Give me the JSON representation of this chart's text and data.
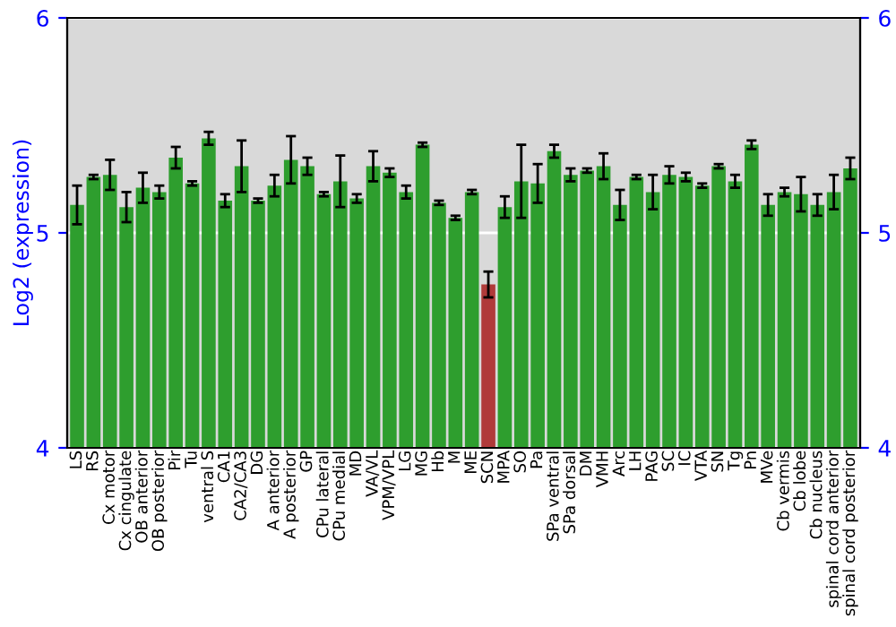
{
  "chart_data": {
    "type": "bar",
    "ylabel": "Log2 (expression)",
    "categories": [
      "LS",
      "RS",
      "Cx motor",
      "Cx cingulate",
      "OB anterior",
      "OB posterior",
      "Pir",
      "Tu",
      "ventral S",
      "CA1",
      "CA2/CA3",
      "DG",
      "A anterior",
      "A posterior",
      "GP",
      "CPu lateral",
      "CPu medial",
      "MD",
      "VA/VL",
      "VPM/VPL",
      "LG",
      "MG",
      "Hb",
      "M",
      "ME",
      "SCN",
      "MPA",
      "SO",
      "Pa",
      "SPa ventral",
      "SPa dorsal",
      "DM",
      "VMH",
      "Arc",
      "LH",
      "PAG",
      "SC",
      "IC",
      "VTA",
      "SN",
      "Tg",
      "Pn",
      "MVe",
      "Cb vermis",
      "Cb lobe",
      "Cb nucleus",
      "spinal cord anterior",
      "spinal cord posterior"
    ],
    "values": [
      5.13,
      5.26,
      5.27,
      5.12,
      5.21,
      5.19,
      5.35,
      5.23,
      5.44,
      5.15,
      5.31,
      5.15,
      5.22,
      5.34,
      5.31,
      5.18,
      5.24,
      5.16,
      5.31,
      5.28,
      5.19,
      5.41,
      5.14,
      5.07,
      5.19,
      4.76,
      5.12,
      5.24,
      5.23,
      5.38,
      5.27,
      5.29,
      5.31,
      5.13,
      5.26,
      5.19,
      5.27,
      5.26,
      5.22,
      5.31,
      5.24,
      5.41,
      5.13,
      5.19,
      5.18,
      5.13,
      5.19,
      5.3
    ],
    "errors": [
      0.09,
      0.01,
      0.07,
      0.07,
      0.07,
      0.03,
      0.05,
      0.01,
      0.03,
      0.03,
      0.12,
      0.01,
      0.05,
      0.11,
      0.04,
      0.01,
      0.12,
      0.02,
      0.07,
      0.02,
      0.03,
      0.01,
      0.01,
      0.01,
      0.01,
      0.06,
      0.05,
      0.17,
      0.09,
      0.03,
      0.03,
      0.01,
      0.06,
      0.07,
      0.01,
      0.08,
      0.04,
      0.02,
      0.01,
      0.01,
      0.03,
      0.02,
      0.05,
      0.02,
      0.08,
      0.05,
      0.08,
      0.05
    ],
    "colors": [
      "#2e9e2e",
      "#2e9e2e",
      "#2e9e2e",
      "#2e9e2e",
      "#2e9e2e",
      "#2e9e2e",
      "#2e9e2e",
      "#2e9e2e",
      "#2e9e2e",
      "#2e9e2e",
      "#2e9e2e",
      "#2e9e2e",
      "#2e9e2e",
      "#2e9e2e",
      "#2e9e2e",
      "#2e9e2e",
      "#2e9e2e",
      "#2e9e2e",
      "#2e9e2e",
      "#2e9e2e",
      "#2e9e2e",
      "#2e9e2e",
      "#2e9e2e",
      "#2e9e2e",
      "#2e9e2e",
      "#b03a3a",
      "#2e9e2e",
      "#2e9e2e",
      "#2e9e2e",
      "#2e9e2e",
      "#2e9e2e",
      "#2e9e2e",
      "#2e9e2e",
      "#2e9e2e",
      "#2e9e2e",
      "#2e9e2e",
      "#2e9e2e",
      "#2e9e2e",
      "#2e9e2e",
      "#2e9e2e",
      "#2e9e2e",
      "#2e9e2e",
      "#2e9e2e",
      "#2e9e2e",
      "#2e9e2e",
      "#2e9e2e",
      "#2e9e2e",
      "#2e9e2e"
    ],
    "ylim": [
      4,
      6
    ],
    "yticks": [
      4,
      5,
      6
    ],
    "y2lim": [
      4,
      6
    ],
    "y2ticks": [
      4,
      5,
      6
    ],
    "grid": "y"
  }
}
